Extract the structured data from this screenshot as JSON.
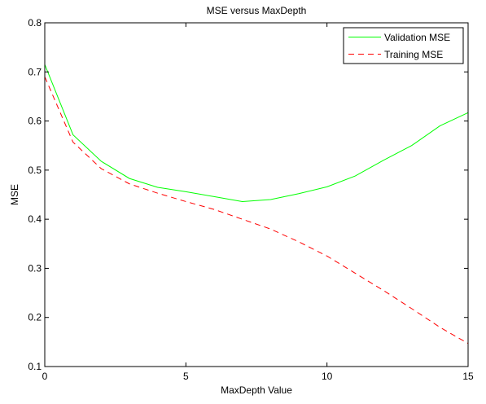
{
  "chart_data": {
    "type": "line",
    "title": "MSE versus MaxDepth",
    "xlabel": "MaxDepth Value",
    "ylabel": "MSE",
    "xlim": [
      0,
      15
    ],
    "ylim": [
      0.1,
      0.8
    ],
    "xticks": [
      0,
      5,
      10,
      15
    ],
    "yticks": [
      0.1,
      0.2,
      0.3,
      0.4,
      0.5,
      0.6,
      0.7,
      0.8
    ],
    "ytick_labels": [
      "0.1",
      "0.2",
      "0.3",
      "0.4",
      "0.5",
      "0.6",
      "0.7",
      "0.8"
    ],
    "grid": false,
    "legend_position": "top-right",
    "x": [
      0,
      1,
      2,
      3,
      4,
      5,
      6,
      7,
      8,
      9,
      10,
      11,
      12,
      13,
      14,
      15
    ],
    "series": [
      {
        "name": "Validation MSE",
        "color": "#00ff00",
        "style": "solid",
        "values": [
          0.715,
          0.572,
          0.518,
          0.483,
          0.465,
          0.456,
          0.446,
          0.436,
          0.44,
          0.452,
          0.466,
          0.488,
          0.52,
          0.55,
          0.59,
          0.617
        ]
      },
      {
        "name": "Training MSE",
        "color": "#ff0000",
        "style": "dashed",
        "values": [
          0.69,
          0.557,
          0.503,
          0.472,
          0.453,
          0.436,
          0.42,
          0.4,
          0.38,
          0.354,
          0.325,
          0.29,
          0.255,
          0.218,
          0.18,
          0.147
        ]
      }
    ]
  }
}
